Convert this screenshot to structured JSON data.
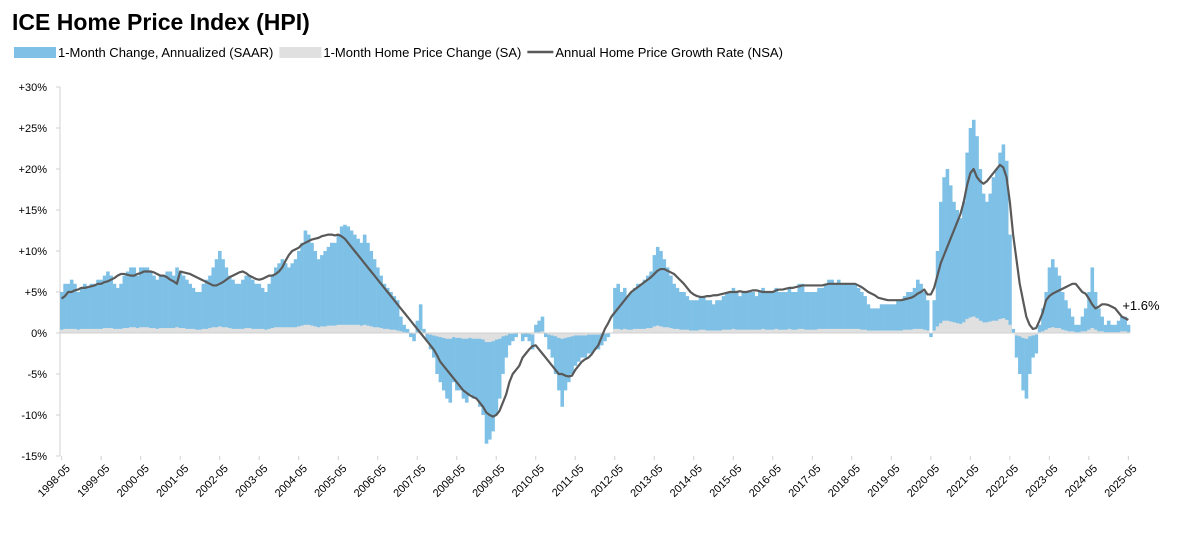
{
  "chart_data": {
    "type": "bar",
    "title": "ICE Home Price Index (HPI)",
    "categories": [
      "1998-05",
      null,
      null,
      null,
      null,
      null,
      null,
      null,
      null,
      null,
      null,
      null,
      "1999-05",
      null,
      null,
      null,
      null,
      null,
      null,
      null,
      null,
      null,
      null,
      null,
      "2000-05",
      null,
      null,
      null,
      null,
      null,
      null,
      null,
      null,
      null,
      null,
      null,
      "2001-05",
      null,
      null,
      null,
      null,
      null,
      null,
      null,
      null,
      null,
      null,
      null,
      "2002-05",
      null,
      null,
      null,
      null,
      null,
      null,
      null,
      null,
      null,
      null,
      null,
      "2003-05",
      null,
      null,
      null,
      null,
      null,
      null,
      null,
      null,
      null,
      null,
      null,
      "2004-05",
      null,
      null,
      null,
      null,
      null,
      null,
      null,
      null,
      null,
      null,
      null,
      "2005-05",
      null,
      null,
      null,
      null,
      null,
      null,
      null,
      null,
      null,
      null,
      null,
      "2006-05",
      null,
      null,
      null,
      null,
      null,
      null,
      null,
      null,
      null,
      null,
      null,
      "2007-05",
      null,
      null,
      null,
      null,
      null,
      null,
      null,
      null,
      null,
      null,
      null,
      "2008-05",
      null,
      null,
      null,
      null,
      null,
      null,
      null,
      null,
      null,
      null,
      null,
      "2009-05",
      null,
      null,
      null,
      null,
      null,
      null,
      null,
      null,
      null,
      null,
      null,
      "2010-05",
      null,
      null,
      null,
      null,
      null,
      null,
      null,
      null,
      null,
      null,
      null,
      "2011-05",
      null,
      null,
      null,
      null,
      null,
      null,
      null,
      null,
      null,
      null,
      null,
      "2012-05",
      null,
      null,
      null,
      null,
      null,
      null,
      null,
      null,
      null,
      null,
      null,
      "2013-05",
      null,
      null,
      null,
      null,
      null,
      null,
      null,
      null,
      null,
      null,
      null,
      "2014-05",
      null,
      null,
      null,
      null,
      null,
      null,
      null,
      null,
      null,
      null,
      null,
      "2015-05",
      null,
      null,
      null,
      null,
      null,
      null,
      null,
      null,
      null,
      null,
      null,
      "2016-05",
      null,
      null,
      null,
      null,
      null,
      null,
      null,
      null,
      null,
      null,
      null,
      "2017-05",
      null,
      null,
      null,
      null,
      null,
      null,
      null,
      null,
      null,
      null,
      null,
      "2018-05",
      null,
      null,
      null,
      null,
      null,
      null,
      null,
      null,
      null,
      null,
      null,
      "2019-05",
      null,
      null,
      null,
      null,
      null,
      null,
      null,
      null,
      null,
      null,
      null,
      "2020-05",
      null,
      null,
      null,
      null,
      null,
      null,
      null,
      null,
      null,
      null,
      null,
      "2021-05",
      null,
      null,
      null,
      null,
      null,
      null,
      null,
      null,
      null,
      null,
      null,
      "2022-05",
      null,
      null,
      null,
      null,
      null,
      null,
      null,
      null,
      null,
      null,
      null,
      "2023-05",
      null,
      null,
      null,
      null,
      null,
      null,
      null,
      null,
      null,
      null,
      null,
      "2024-05",
      null,
      null,
      null,
      null,
      null,
      null,
      null,
      null,
      null,
      null,
      null,
      "2025-05"
    ],
    "series": [
      {
        "name": "1-Month Change, Annualized (SAAR)",
        "type": "bar",
        "color": "#7fc1e6",
        "values": [
          5,
          6,
          6,
          6.5,
          6,
          5,
          5.5,
          6,
          5.5,
          6,
          6,
          6.5,
          6.5,
          7,
          7.5,
          7,
          6,
          5.5,
          6,
          7,
          7.5,
          8,
          8,
          7,
          8,
          8,
          8,
          7.5,
          7,
          6.5,
          7,
          7,
          7.5,
          7.5,
          7,
          8,
          7.5,
          7,
          6.5,
          6,
          5.5,
          5,
          5,
          6,
          6.5,
          7,
          8,
          9,
          10,
          9,
          8,
          7,
          6.5,
          6,
          6,
          6.5,
          7,
          7,
          6.5,
          6,
          6,
          5.5,
          5,
          6,
          7,
          8,
          8.5,
          9,
          8.5,
          8,
          8.5,
          9,
          10,
          11,
          12.5,
          12,
          11,
          10,
          9,
          9.5,
          10,
          10.5,
          11,
          11,
          12,
          13,
          13.2,
          13,
          12.5,
          12,
          11.5,
          11,
          12,
          11,
          10,
          9,
          8,
          7,
          6,
          5.5,
          5,
          4.5,
          4,
          2,
          1,
          0.5,
          -0.5,
          -1,
          1.5,
          3.5,
          0.5,
          -1,
          -2,
          -3,
          -5,
          -6,
          -7,
          -8,
          -8.5,
          -6,
          -7,
          -7,
          -8,
          -8.5,
          -7.5,
          -8,
          -8,
          -9,
          -10,
          -13.5,
          -13,
          -12,
          -10,
          -8,
          -5,
          -3,
          -1.5,
          -1,
          -0.5,
          0,
          -1,
          -0.5,
          -1,
          -2,
          1,
          1.5,
          2,
          -0.5,
          -2,
          -3,
          -5,
          -7,
          -9,
          -7,
          -6,
          -5,
          -4,
          -3.5,
          -3,
          -3,
          -2.5,
          -2.5,
          -2,
          -2,
          -1.5,
          -1,
          -0.5,
          0,
          5.5,
          6,
          5,
          5.5,
          4.5,
          5,
          5.5,
          6,
          6,
          6.5,
          7,
          7.5,
          9.5,
          10.5,
          10,
          9,
          8,
          7,
          6,
          5.5,
          5,
          5,
          4.5,
          4,
          4,
          4,
          4.5,
          4.5,
          4,
          4,
          3.5,
          4,
          4,
          4.5,
          5,
          5,
          5.5,
          5,
          4.5,
          5,
          5,
          5,
          5,
          4.5,
          5,
          5.5,
          5,
          5,
          5,
          5.5,
          5,
          5,
          5,
          5.5,
          5,
          5,
          6,
          6,
          5,
          5,
          5,
          5,
          5.5,
          5.5,
          6,
          6.5,
          6.5,
          6,
          6.5,
          6,
          6,
          6,
          6,
          6,
          5.5,
          5,
          4.5,
          3.5,
          3,
          3,
          3,
          3.5,
          3.5,
          3.5,
          3.5,
          3.5,
          4,
          4,
          4.5,
          5,
          5,
          5.5,
          6.5,
          6,
          5,
          4,
          -0.5,
          4,
          10,
          16,
          19,
          20,
          18,
          16,
          15,
          14,
          16,
          22,
          25,
          26,
          24,
          20,
          17,
          16,
          17,
          19,
          20,
          22,
          23,
          21,
          12,
          0.5,
          -3,
          -5,
          -7,
          -8,
          -5,
          -3,
          -2.5,
          1,
          3,
          5,
          8,
          9,
          8,
          7,
          5,
          4,
          3,
          2,
          1,
          1,
          2,
          3,
          5,
          8,
          5,
          3,
          2,
          1,
          1.5,
          1,
          1,
          1.5,
          2,
          2,
          1
        ]
      },
      {
        "name": "1-Month Home Price Change (SA)",
        "type": "bar",
        "color": "#e0e0e0",
        "values": [
          0.4,
          0.5,
          0.5,
          0.5,
          0.5,
          0.4,
          0.5,
          0.5,
          0.5,
          0.5,
          0.5,
          0.5,
          0.5,
          0.6,
          0.6,
          0.6,
          0.5,
          0.5,
          0.5,
          0.6,
          0.6,
          0.7,
          0.7,
          0.6,
          0.7,
          0.7,
          0.7,
          0.6,
          0.6,
          0.5,
          0.6,
          0.6,
          0.6,
          0.6,
          0.6,
          0.7,
          0.6,
          0.6,
          0.5,
          0.5,
          0.5,
          0.4,
          0.4,
          0.5,
          0.5,
          0.6,
          0.7,
          0.7,
          0.8,
          0.7,
          0.7,
          0.6,
          0.5,
          0.5,
          0.5,
          0.5,
          0.6,
          0.6,
          0.5,
          0.5,
          0.5,
          0.5,
          0.4,
          0.5,
          0.6,
          0.7,
          0.7,
          0.7,
          0.7,
          0.7,
          0.7,
          0.7,
          0.8,
          0.9,
          1,
          1,
          0.9,
          0.8,
          0.7,
          0.8,
          0.8,
          0.9,
          0.9,
          0.9,
          1,
          1,
          1,
          1,
          1,
          1,
          1,
          0.9,
          1,
          0.9,
          0.8,
          0.7,
          0.7,
          0.6,
          0.5,
          0.5,
          0.4,
          0.4,
          0.3,
          0.2,
          0.1,
          0,
          0,
          -0.1,
          0.1,
          0.3,
          0,
          -0.1,
          -0.2,
          -0.3,
          -0.4,
          -0.5,
          -0.6,
          -0.7,
          -0.7,
          -0.5,
          -0.6,
          -0.6,
          -0.7,
          -0.7,
          -0.6,
          -0.7,
          -0.7,
          -0.7,
          -0.8,
          -1.1,
          -1.1,
          -1,
          -0.8,
          -0.7,
          -0.4,
          -0.3,
          -0.1,
          -0.1,
          0,
          0,
          -0.1,
          0,
          -0.1,
          -0.2,
          0.1,
          0.1,
          0.2,
          0,
          -0.2,
          -0.3,
          -0.4,
          -0.6,
          -0.7,
          -0.6,
          -0.5,
          -0.4,
          -0.3,
          -0.3,
          -0.3,
          -0.3,
          -0.2,
          -0.2,
          -0.2,
          -0.2,
          -0.1,
          -0.1,
          0,
          0,
          0.5,
          0.5,
          0.4,
          0.5,
          0.4,
          0.4,
          0.5,
          0.5,
          0.5,
          0.5,
          0.6,
          0.6,
          0.8,
          0.9,
          0.8,
          0.7,
          0.7,
          0.6,
          0.5,
          0.5,
          0.4,
          0.4,
          0.4,
          0.3,
          0.3,
          0.3,
          0.4,
          0.4,
          0.3,
          0.3,
          0.3,
          0.3,
          0.3,
          0.4,
          0.4,
          0.4,
          0.5,
          0.4,
          0.4,
          0.4,
          0.4,
          0.4,
          0.4,
          0.4,
          0.4,
          0.5,
          0.4,
          0.4,
          0.4,
          0.5,
          0.4,
          0.4,
          0.4,
          0.5,
          0.4,
          0.4,
          0.5,
          0.5,
          0.4,
          0.4,
          0.4,
          0.4,
          0.5,
          0.5,
          0.5,
          0.5,
          0.5,
          0.5,
          0.5,
          0.5,
          0.5,
          0.5,
          0.5,
          0.5,
          0.5,
          0.4,
          0.4,
          0.3,
          0.3,
          0.3,
          0.3,
          0.3,
          0.3,
          0.3,
          0.3,
          0.3,
          0.3,
          0.3,
          0.4,
          0.4,
          0.4,
          0.5,
          0.5,
          0.5,
          0.4,
          0.3,
          0,
          0.3,
          0.8,
          1.2,
          1.5,
          1.5,
          1.4,
          1.3,
          1.2,
          1.1,
          1.3,
          1.7,
          1.9,
          2,
          1.8,
          1.5,
          1.3,
          1.3,
          1.4,
          1.5,
          1.5,
          1.7,
          1.8,
          1.6,
          1,
          0,
          -0.3,
          -0.4,
          -0.6,
          -0.7,
          -0.4,
          -0.3,
          -0.2,
          0.1,
          0.2,
          0.4,
          0.6,
          0.7,
          0.6,
          0.6,
          0.4,
          0.3,
          0.2,
          0.2,
          0.1,
          0.1,
          0.2,
          0.2,
          0.4,
          0.6,
          0.4,
          0.2,
          0.2,
          0.1,
          0.1,
          0.1,
          0.1,
          0.1,
          0.2,
          0.2,
          0.1
        ]
      },
      {
        "name": "Annual Home Price Growth Rate (NSA)",
        "type": "line",
        "color": "#595959",
        "end_label": "+1.6%",
        "values": [
          4.2,
          4.5,
          5,
          5,
          5.2,
          5.3,
          5.5,
          5.5,
          5.6,
          5.7,
          5.8,
          6,
          6,
          6.2,
          6.3,
          6.5,
          6.7,
          7,
          7.2,
          7.2,
          7.1,
          7,
          7,
          7.2,
          7.3,
          7.5,
          7.5,
          7.5,
          7.4,
          7.2,
          7,
          7,
          6.8,
          6.5,
          6.3,
          6,
          7.5,
          7.4,
          7.3,
          7.2,
          7,
          6.8,
          6.6,
          6.4,
          6.2,
          6,
          5.8,
          5.8,
          6,
          6.2,
          6.5,
          6.8,
          7,
          7.2,
          7.4,
          7.5,
          7.3,
          7,
          6.8,
          6.6,
          6.5,
          6.6,
          6.8,
          7,
          7,
          7.2,
          7.5,
          8,
          8.8,
          9.5,
          10,
          10.2,
          10.4,
          10.8,
          11,
          11.2,
          11.4,
          11.5,
          11.6,
          11.8,
          11.9,
          12,
          12,
          11.9,
          12,
          11.8,
          11.5,
          11,
          10.5,
          10,
          9.5,
          9,
          8.5,
          8,
          7.5,
          7,
          6.5,
          6,
          5.5,
          5,
          4.5,
          4,
          3.5,
          3,
          2.5,
          2,
          1.5,
          1,
          0.5,
          0,
          -0.5,
          -1,
          -1.5,
          -2,
          -2.7,
          -3.5,
          -4,
          -4.5,
          -5,
          -5.5,
          -6,
          -6.5,
          -7,
          -7.3,
          -7.6,
          -7.8,
          -8,
          -8.5,
          -9,
          -9.7,
          -10,
          -10.2,
          -10,
          -9.5,
          -8.5,
          -7.5,
          -6,
          -5,
          -4.5,
          -4,
          -3,
          -2.5,
          -2,
          -1.6,
          -1.5,
          -2,
          -2.5,
          -3,
          -3.5,
          -4,
          -4.5,
          -5,
          -5,
          -5.2,
          -5.3,
          -5.2,
          -4.5,
          -4,
          -3.5,
          -3.2,
          -3,
          -2.6,
          -2,
          -1.5,
          -0.5,
          0.5,
          1.2,
          2,
          2.5,
          3,
          3.5,
          4,
          4.5,
          5,
          5.3,
          5.6,
          5.9,
          6.2,
          6.5,
          6.8,
          7.2,
          7.6,
          7.8,
          7.8,
          7.6,
          7.4,
          7.2,
          6.8,
          6.4,
          6,
          5.5,
          5,
          4.7,
          4.5,
          4.4,
          4.4,
          4.5,
          4.5,
          4.6,
          4.6,
          4.7,
          4.8,
          4.9,
          5,
          5,
          5,
          5.1,
          5,
          5,
          5.1,
          5.2,
          5.2,
          5.1,
          5,
          5,
          5,
          5,
          5.2,
          5.3,
          5.3,
          5.4,
          5.5,
          5.5,
          5.6,
          5.7,
          5.8,
          5.8,
          5.8,
          5.8,
          5.8,
          5.8,
          5.8,
          5.9,
          6,
          6,
          6,
          6,
          6,
          6,
          6,
          6,
          6,
          5.8,
          5.6,
          5.3,
          5,
          4.8,
          4.6,
          4.3,
          4.2,
          4.1,
          4,
          4,
          4,
          4,
          4,
          4.1,
          4.2,
          4.3,
          4.5,
          4.8,
          5,
          5.3,
          4.7,
          4.7,
          5.5,
          7,
          8.5,
          9.5,
          10.5,
          11.5,
          12.5,
          13.5,
          14.5,
          16,
          18,
          19.5,
          20,
          19,
          18.5,
          18.2,
          18.5,
          19,
          19.5,
          20,
          20.5,
          20.2,
          19,
          16,
          12,
          9,
          6,
          4,
          2,
          1,
          0.5,
          0.6,
          1.5,
          2.5,
          4,
          4.5,
          4.8,
          5,
          5.2,
          5.4,
          5.6,
          5.8,
          6,
          6,
          5.5,
          5,
          4.8,
          4.2,
          3.5,
          3,
          3.2,
          3.5,
          3.5,
          3.4,
          3.2,
          3,
          2.5,
          2,
          1.8,
          1.6
        ]
      }
    ],
    "ylim": [
      -15,
      30
    ],
    "yticks": [
      {
        "value": -15,
        "label": "-15%"
      },
      {
        "value": -10,
        "label": "-10%"
      },
      {
        "value": -5,
        "label": "-5%"
      },
      {
        "value": 0,
        "label": "0%"
      },
      {
        "value": 5,
        "label": "+5%"
      },
      {
        "value": 10,
        "label": "+10%"
      },
      {
        "value": 15,
        "label": "+15%"
      },
      {
        "value": 20,
        "label": "+20%"
      },
      {
        "value": 25,
        "label": "+25%"
      },
      {
        "value": 30,
        "label": "+30%"
      }
    ],
    "grid": false,
    "legend": "top-left"
  }
}
